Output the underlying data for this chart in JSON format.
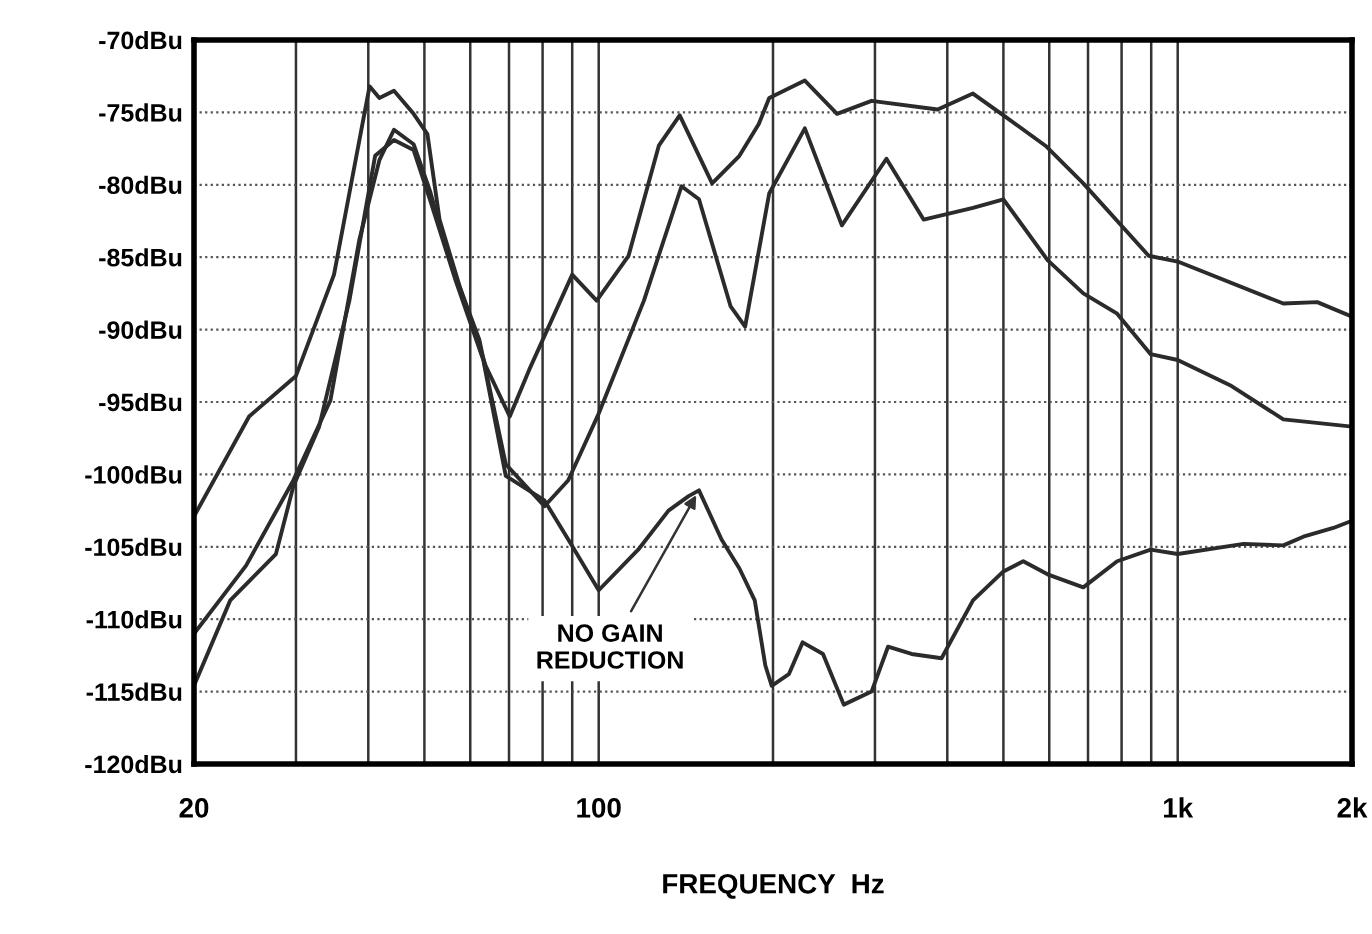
{
  "chart_data": {
    "type": "line",
    "xlabel": "FREQUENCY  Hz",
    "log": "x",
    "grid": true,
    "marker": "none",
    "line_style": "solid",
    "xlim": [
      20,
      2000
    ],
    "xticks": [
      20,
      {
        "value": 30,
        "label": null
      },
      {
        "value": 40,
        "label": null
      },
      {
        "value": 50,
        "label": null
      },
      {
        "value": 60,
        "label": null
      },
      {
        "value": 70,
        "label": null
      },
      {
        "value": 80,
        "label": null
      },
      {
        "value": 90,
        "label": null
      },
      100,
      {
        "value": 200,
        "label": null
      },
      {
        "value": 300,
        "label": null
      },
      {
        "value": 400,
        "label": null
      },
      {
        "value": 500,
        "label": null
      },
      {
        "value": 600,
        "label": null
      },
      {
        "value": 700,
        "label": null
      },
      {
        "value": 800,
        "label": null
      },
      {
        "value": 900,
        "label": null
      },
      {
        "value": 1000,
        "label": "1k"
      },
      {
        "value": 2000,
        "label": "2k"
      }
    ],
    "ylim": [
      -120,
      -70
    ],
    "yticks": [
      {
        "value": -70,
        "label": "-70dBu"
      },
      {
        "value": -75,
        "label": "-75dBu"
      },
      {
        "value": -80,
        "label": "-80dBu"
      },
      {
        "value": -85,
        "label": "-85dBu"
      },
      {
        "value": -90,
        "label": "-90dBu"
      },
      {
        "value": -95,
        "label": "-95dBu"
      },
      {
        "value": -100,
        "label": "-100dBu"
      },
      {
        "value": -105,
        "label": "-105dBu"
      },
      {
        "value": -110,
        "label": "-110dBu"
      },
      {
        "value": -115,
        "label": "-115dBu"
      },
      {
        "value": -120,
        "label": "-120dBu"
      }
    ],
    "annotations": [
      {
        "text": "NO GAIN\nREDUCTION",
        "x": 149,
        "y": -101.1
      }
    ],
    "series": [
      {
        "color": "#2b2b2b",
        "x": [
          20,
          24.9,
          30,
          34.9,
          40.2,
          41.8,
          44.3,
          47.9,
          50.6,
          53.1,
          57.5,
          63.8,
          70.2,
          75.8,
          90,
          99.2,
          112.6,
          127,
          138,
          157,
          175,
          189,
          197,
          227,
          258,
          296,
          385,
          443,
          496,
          591,
          687,
          891,
          1000,
          1522,
          1742,
          2000
        ],
        "values": [
          -102.9,
          -96.0,
          -93.2,
          -86.2,
          -73.2,
          -74.0,
          -73.5,
          -75.1,
          -76.5,
          -82.4,
          -87.0,
          -92.5,
          -96.0,
          -92.8,
          -86.2,
          -88.0,
          -84.9,
          -77.3,
          -75.2,
          -79.9,
          -78.0,
          -75.8,
          -74.0,
          -72.8,
          -75.1,
          -74.2,
          -74.8,
          -73.7,
          -75.1,
          -77.3,
          -79.9,
          -84.9,
          -85.3,
          -88.2,
          -88.1,
          -89.1
        ]
      },
      {
        "color": "#2b2b2b",
        "x": [
          20,
          24.6,
          29.7,
          34.4,
          38.6,
          41.8,
          44.3,
          47.9,
          51.1,
          55.3,
          62.2,
          69.1,
          80.6,
          88.6,
          100,
          119.7,
          139,
          149,
          169,
          179,
          197,
          227,
          263,
          314,
          364,
          443,
          500,
          596,
          687,
          786,
          898,
          1000,
          1239,
          1522,
          2000
        ],
        "values": [
          -111.0,
          -106.3,
          -100.4,
          -94.9,
          -83.8,
          -78.3,
          -76.2,
          -77.2,
          -80.4,
          -85.2,
          -90.7,
          -99.3,
          -102.2,
          -100.4,
          -95.8,
          -88.0,
          -80.1,
          -81.0,
          -88.4,
          -89.8,
          -80.6,
          -76.1,
          -82.8,
          -78.2,
          -82.4,
          -81.6,
          -81.0,
          -85.2,
          -87.5,
          -88.9,
          -91.7,
          -92.1,
          -93.9,
          -96.2,
          -96.7
        ]
      },
      {
        "color": "#2b2b2b",
        "x": [
          20,
          23.1,
          27.7,
          29.7,
          32.9,
          37.1,
          41.1,
          44.3,
          47.9,
          51.1,
          56.6,
          63.2,
          69.1,
          80.6,
          88.6,
          100,
          117,
          132,
          143,
          149,
          163,
          175,
          186,
          194,
          199,
          213,
          225,
          244,
          265,
          296,
          316,
          347,
          391,
          443,
          500,
          541,
          596,
          687,
          786,
          898,
          1000,
          1300,
          1522,
          1648,
          1857,
          2000
        ],
        "values": [
          -114.6,
          -108.7,
          -105.5,
          -100.8,
          -96.7,
          -88.0,
          -78.0,
          -76.9,
          -77.6,
          -81.0,
          -86.6,
          -92.1,
          -100.1,
          -101.8,
          -104.5,
          -108.0,
          -105.2,
          -102.5,
          -101.5,
          -101.1,
          -104.5,
          -106.5,
          -108.7,
          -113.2,
          -114.6,
          -113.8,
          -111.6,
          -112.4,
          -115.9,
          -115.0,
          -111.9,
          -112.4,
          -112.7,
          -108.7,
          -106.7,
          -106.0,
          -106.9,
          -107.8,
          -106.0,
          -105.2,
          -105.5,
          -104.8,
          -104.9,
          -104.3,
          -103.7,
          -103.2
        ]
      }
    ]
  }
}
